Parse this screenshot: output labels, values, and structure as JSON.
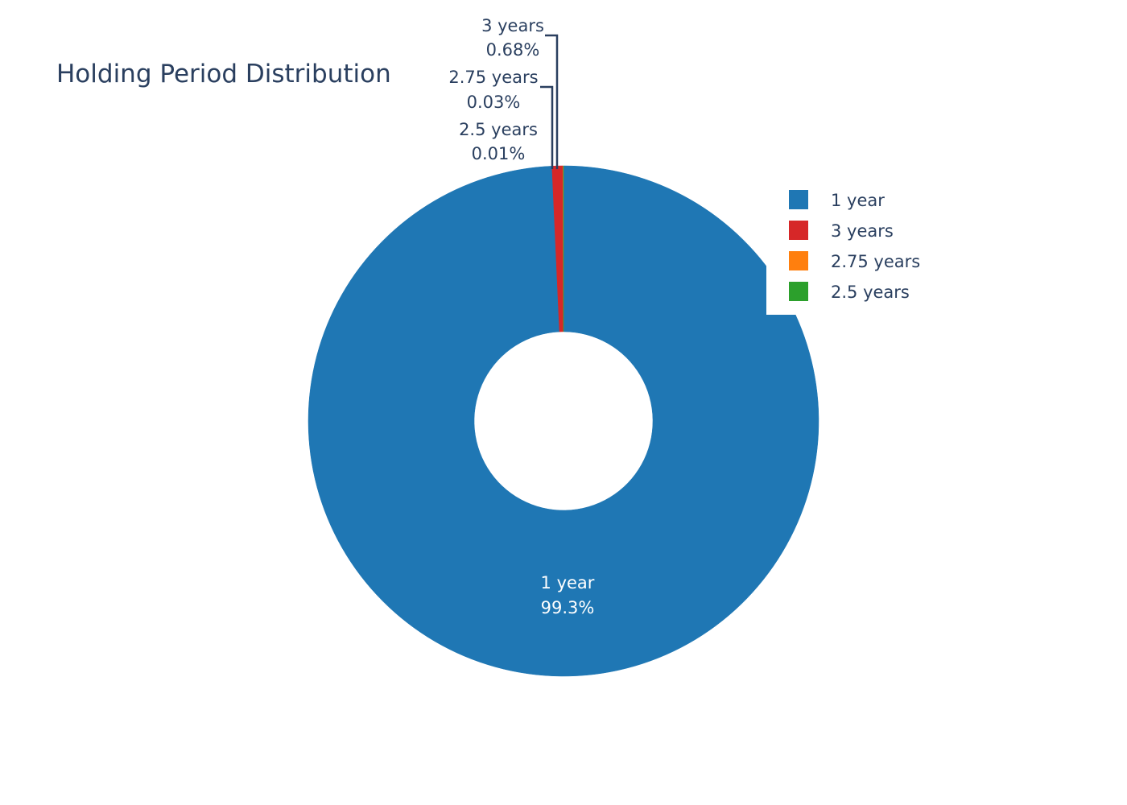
{
  "chart_data": {
    "type": "pie",
    "title": "Holding Period Distribution",
    "hole": true,
    "legend_position": "top-right",
    "slices": [
      {
        "label": "1 year",
        "percent": 99.3,
        "display": "99.3%",
        "color": "#1f77b4"
      },
      {
        "label": "3 years",
        "percent": 0.68,
        "display": "0.68%",
        "color": "#d62728"
      },
      {
        "label": "2.75 years",
        "percent": 0.03,
        "display": "0.03%",
        "color": "#ff7f0e"
      },
      {
        "label": "2.5 years",
        "percent": 0.01,
        "display": "0.01%",
        "color": "#2ca02c"
      }
    ],
    "legend": [
      "1 year",
      "3 years",
      "2.75 years",
      "2.5 years"
    ]
  }
}
